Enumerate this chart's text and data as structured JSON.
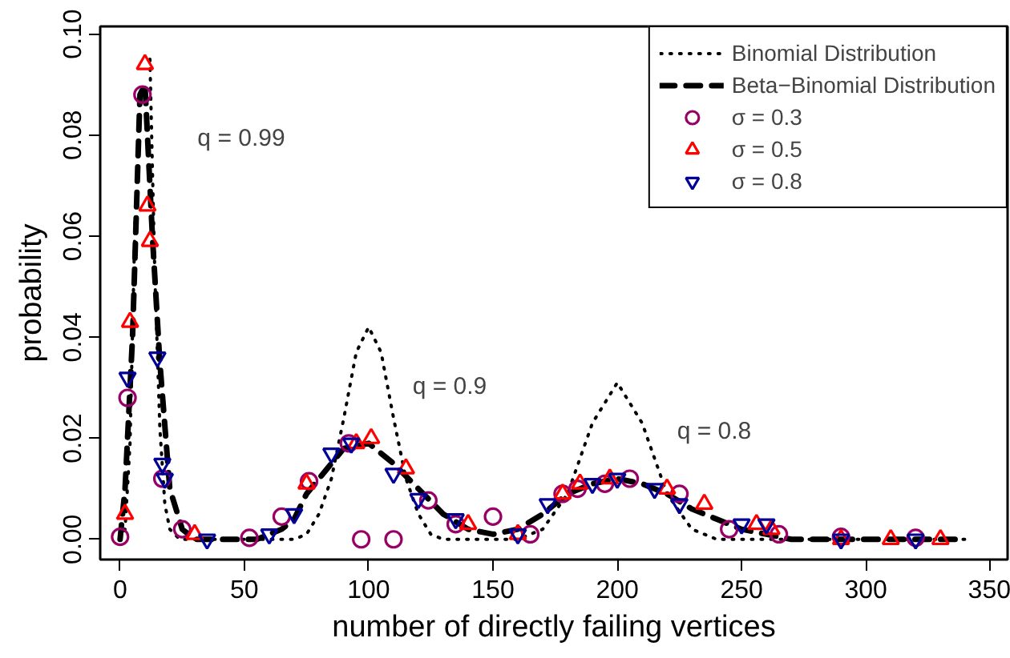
{
  "chart_data": {
    "type": "line",
    "xlabel": "number of directly failing vertices",
    "ylabel": "probability",
    "xlim": [
      -8,
      357
    ],
    "ylim": [
      -0.004,
      0.1015
    ],
    "xticks": [
      0,
      50,
      100,
      150,
      200,
      250,
      300,
      350
    ],
    "yticks": [
      {
        "value": 0,
        "label": "0.00"
      },
      {
        "value": 0.02,
        "label": "0.02"
      },
      {
        "value": 0.04,
        "label": "0.04"
      },
      {
        "value": 0.06,
        "label": "0.06"
      },
      {
        "value": 0.08,
        "label": "0.08"
      },
      {
        "value": 0.1,
        "label": "0.10"
      }
    ],
    "grid": false,
    "legend": "top right",
    "annotations": [
      "q = 0.99",
      "q = 0.9",
      "q = 0.8"
    ],
    "series": [
      {
        "name": "Binomial Distribution",
        "line_style": "dotted",
        "color": "#000000",
        "x": [
          0,
          2,
          4,
          6,
          8,
          9,
          10,
          11,
          12,
          14,
          16,
          18,
          20,
          24,
          30,
          40,
          60,
          70,
          75,
          80,
          85,
          90,
          95,
          100,
          105,
          110,
          115,
          120,
          125,
          130,
          140,
          160,
          170,
          180,
          190,
          200,
          210,
          220,
          230,
          240,
          260,
          300,
          340
        ],
        "values": [
          0,
          0.002,
          0.019,
          0.063,
          null,
          null,
          null,
          null,
          0.095,
          0.052,
          0.022,
          0.007,
          0.002,
          0,
          0,
          0,
          0,
          0,
          0.001,
          0.005,
          0.012,
          0.024,
          0.037,
          0.042,
          0.037,
          0.024,
          0.012,
          0.005,
          0.001,
          0,
          0,
          0,
          0.002,
          0.009,
          0.023,
          0.031,
          0.023,
          0.009,
          0.002,
          0,
          0,
          0,
          0
        ]
      },
      {
        "name": "Beta−Binomial Distribution",
        "line_style": "dashed",
        "color": "#000000",
        "x": [
          0,
          2,
          5,
          8,
          10,
          13,
          16,
          20,
          25,
          30,
          40,
          55,
          60,
          65,
          70,
          75,
          80,
          90,
          100,
          110,
          120,
          130,
          140,
          150,
          160,
          170,
          180,
          190,
          200,
          210,
          220,
          230,
          240,
          250,
          260,
          270,
          300,
          340
        ],
        "values": [
          0,
          0.01,
          0.04,
          0.088,
          0.09,
          0.06,
          0.035,
          0.01,
          0.002,
          0,
          0,
          0,
          0.001,
          0.002,
          0.004,
          0.009,
          0.012,
          0.018,
          0.019,
          0.015,
          0.01,
          0.005,
          0.002,
          0.001,
          0.002,
          0.005,
          0.009,
          0.011,
          0.012,
          0.011,
          0.009,
          0.006,
          0.004,
          0.002,
          0.001,
          0,
          0,
          0
        ]
      },
      {
        "name": "σ = 0.3",
        "type": "scatter",
        "marker": "circle",
        "color": "#990066",
        "x": [
          0,
          3,
          9,
          17,
          25,
          52,
          65,
          76,
          92,
          97,
          110,
          124,
          135,
          150,
          165,
          178,
          184,
          195,
          205,
          225,
          245,
          265,
          290,
          320
        ],
        "values": [
          0.0005,
          0.028,
          0.088,
          0.012,
          0.002,
          0.0003,
          0.0045,
          0.0115,
          0.019,
          0,
          0,
          0.0077,
          0.003,
          0.0045,
          0.001,
          0.009,
          0.01,
          0.011,
          0.012,
          0.009,
          0.002,
          0.001,
          0.0005,
          0.0003
        ]
      },
      {
        "name": "σ = 0.5",
        "type": "scatter",
        "marker": "triangle",
        "color": "#ff0000",
        "x": [
          2,
          4,
          10,
          11,
          12,
          30,
          75,
          95,
          101,
          115,
          140,
          160,
          178,
          185,
          197,
          220,
          235,
          256,
          262,
          290,
          310,
          330
        ],
        "values": [
          0.005,
          0.043,
          0.094,
          0.066,
          0.059,
          0.001,
          0.011,
          0.019,
          0.02,
          0.014,
          0.003,
          0.001,
          0.009,
          0.011,
          0.012,
          0.01,
          0.007,
          0.003,
          0.002,
          0,
          0,
          0
        ]
      },
      {
        "name": "σ = 0.8",
        "type": "scatter",
        "color": "#000099",
        "x": [
          3,
          15,
          17,
          18,
          35,
          60,
          70,
          85,
          93,
          110,
          120,
          135,
          160,
          172,
          190,
          200,
          215,
          225,
          250,
          260,
          290,
          320
        ],
        "values": [
          0.032,
          0.036,
          0.015,
          0.012,
          0,
          0.001,
          0.005,
          0.017,
          0.019,
          0.013,
          0.008,
          0.004,
          0.001,
          0.007,
          0.011,
          0.012,
          0.01,
          0.007,
          0.003,
          0.003,
          0,
          0
        ]
      }
    ]
  }
}
